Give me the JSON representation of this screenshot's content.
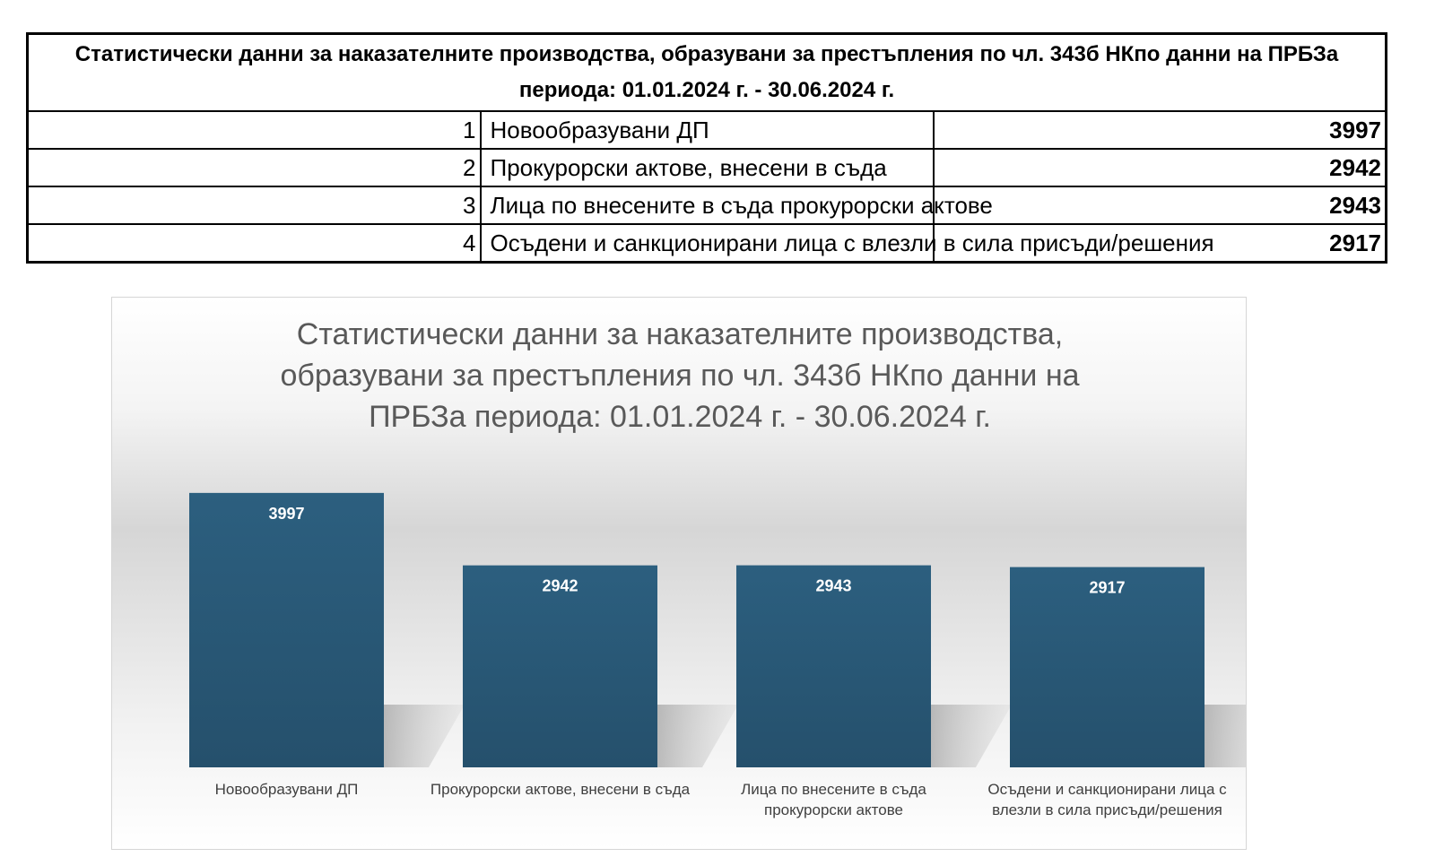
{
  "table": {
    "title": "Статистически данни за наказателните производства, образувани за престъпления по чл. 343б НКпо данни на ПРБЗа периода: 01.01.2024 г. - 30.06.2024 г.",
    "rows": [
      {
        "num": "1",
        "label": "Новообразувани ДП",
        "value": "3997"
      },
      {
        "num": "2",
        "label": "Прокурорски актове, внесени в съда",
        "value": "2942"
      },
      {
        "num": "3",
        "label": "Лица по внесените в съда прокурорски актове",
        "value": "2943"
      },
      {
        "num": "4",
        "label": "Осъдени и санкционирани лица с влезли в сила присъди/решения",
        "value": "2917"
      }
    ]
  },
  "chart_data": {
    "type": "bar",
    "title": "Статистически данни за наказателните производства, образувани за престъпления по чл. 343б НКпо данни на ПРБЗа периода: 01.01.2024 г. - 30.06.2024 г.",
    "categories": [
      "Новообразувани ДП",
      "Прокурорски актове, внесени в съда",
      "Лица по внесените в съда прокурорски актове",
      "Осъдени и санкционирани лица с влезли в сила присъди/решения"
    ],
    "values": [
      3997,
      2942,
      2943,
      2917
    ],
    "ylim": [
      0,
      4400
    ],
    "grid": false,
    "legend": "none",
    "bar_color": "#2c5f7f",
    "bar_color_bottom": "#25506c",
    "label_color": "#ffffff"
  }
}
